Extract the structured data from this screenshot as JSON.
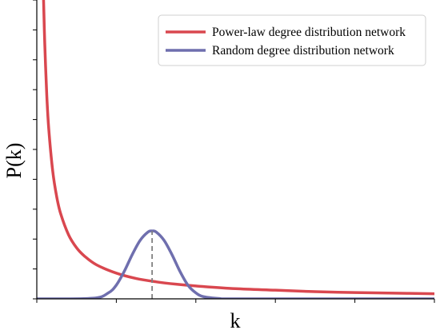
{
  "chart_data": {
    "type": "line",
    "xlabel": "k",
    "ylabel": "P(k)",
    "xlim": [
      0,
      100
    ],
    "ylim": [
      0,
      100
    ],
    "x_ticks_unlabeled": [
      0,
      20,
      40,
      60,
      80,
      100
    ],
    "y_ticks_unlabeled": [
      0,
      10,
      20,
      30,
      40,
      50,
      60,
      70,
      80,
      90,
      100
    ],
    "legend_position": "top-right",
    "grid": false,
    "series": [
      {
        "name": "Power-law degree distribution network",
        "color": "#d9474f",
        "x": [
          1.7,
          2,
          2.5,
          3,
          4,
          5,
          6,
          8,
          10,
          12,
          15,
          20,
          25,
          30,
          35,
          40,
          50,
          60,
          70,
          80,
          90,
          100
        ],
        "y": [
          100,
          85.5,
          68.4,
          57,
          42.8,
          34.2,
          28.5,
          21.4,
          17.1,
          14.3,
          11.4,
          8.6,
          6.8,
          5.7,
          4.9,
          4.3,
          3.4,
          2.9,
          2.4,
          2.1,
          1.9,
          1.7
        ]
      },
      {
        "name": "Random degree distribution network",
        "color": "#6f6fae",
        "x": [
          0,
          14,
          18,
          20,
          22,
          24,
          26,
          28,
          29,
          30,
          32,
          34,
          36,
          38,
          40,
          42,
          46,
          50,
          100
        ],
        "y": [
          0,
          0.2,
          2,
          4.6,
          9.2,
          14.8,
          19.6,
          22.4,
          22.7,
          22.4,
          19.6,
          14.8,
          9.2,
          4.6,
          2,
          0.7,
          0.1,
          0,
          0
        ]
      }
    ],
    "annotations": [
      {
        "type": "vertical-dashed-line",
        "x": 29,
        "from_y": 0,
        "to_y": 22.7,
        "color": "#808080"
      }
    ]
  }
}
